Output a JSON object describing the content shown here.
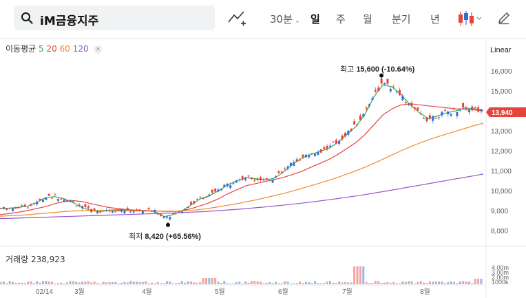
{
  "toolbar": {
    "search_value": "iM금융지주",
    "period_minute": "30분",
    "periods": [
      "일",
      "주",
      "월",
      "분기",
      "년"
    ],
    "active_period": "일"
  },
  "indicators": {
    "ma_label": "이동평균",
    "ma_periods": [
      "5",
      "20",
      "60",
      "120"
    ],
    "ma_colors": [
      "#39a845",
      "#e5433c",
      "#f08a2e",
      "#9656c8"
    ],
    "close_glyph": "×"
  },
  "scale_type": "Linear",
  "price_axis": {
    "ticks": [
      "16,000",
      "15,000",
      "14,000",
      "13,000",
      "12,000",
      "11,000",
      "10,000",
      "9,000",
      "8,000"
    ],
    "current_price": "13,940",
    "current_price_color": "#e5433c"
  },
  "annotations": {
    "high_prefix": "최고",
    "high_value": "15,600 (-10.64%)",
    "low_prefix": "최저",
    "low_value": "8,420 (+65.56%)"
  },
  "volume": {
    "label": "거래량",
    "value": "238,923",
    "axis_ticks": [
      "4.00m",
      "3.00m",
      "2.00m",
      "1000k"
    ]
  },
  "time_axis": [
    "02/14",
    "3월",
    "4월",
    "5월",
    "6월",
    "7월",
    "8월"
  ],
  "colors": {
    "up": "#e5433c",
    "down": "#2f6fd8"
  },
  "chart_data": {
    "type": "line",
    "ylim": [
      7700,
      16400
    ],
    "series": [
      {
        "name": "5",
        "values": [
          9100,
          9120,
          9160,
          9220,
          9400,
          9650,
          9700,
          9600,
          9400,
          9150,
          9000,
          8950,
          9020,
          9050,
          9000,
          8980,
          9000,
          8950,
          8700,
          8800,
          9000,
          9300,
          9600,
          9750,
          10000,
          10300,
          10500,
          10650,
          10600,
          10550,
          10600,
          10900,
          11300,
          11600,
          11800,
          11950,
          12100,
          12400,
          12800,
          13200,
          13800,
          14700,
          15300,
          15200,
          14800,
          14300,
          13900,
          13600,
          13750,
          13900,
          14000,
          14150,
          14100,
          14000
        ]
      },
      {
        "name": "20",
        "values": [
          8800,
          8850,
          8920,
          9000,
          9100,
          9200,
          9350,
          9450,
          9500,
          9450,
          9350,
          9250,
          9150,
          9100,
          9050,
          9020,
          9000,
          8990,
          8960,
          8960,
          8990,
          9100,
          9250,
          9400,
          9600,
          9850,
          10050,
          10250,
          10350,
          10450,
          10550,
          10650,
          10800,
          10950,
          11150,
          11350,
          11550,
          11800,
          12100,
          12400,
          12800,
          13300,
          13800,
          14100,
          14300,
          14350,
          14300,
          14250,
          14200,
          14150,
          14100,
          14080,
          14050,
          14000
        ]
      },
      {
        "name": "60",
        "values": [
          8720,
          8740,
          8760,
          8790,
          8830,
          8870,
          8910,
          8950,
          8980,
          9000,
          9010,
          9010,
          9000,
          8995,
          8990,
          8985,
          8980,
          8980,
          8975,
          8975,
          8985,
          9010,
          9060,
          9120,
          9190,
          9270,
          9350,
          9440,
          9530,
          9630,
          9740,
          9850,
          9970,
          10100,
          10230,
          10370,
          10510,
          10660,
          10820,
          10990,
          11170,
          11370,
          11580,
          11790,
          12000,
          12200,
          12380,
          12550,
          12700,
          12840,
          12980,
          13120,
          13260,
          13380
        ]
      },
      {
        "name": "120",
        "values": [
          8600,
          8610,
          8625,
          8640,
          8655,
          8670,
          8685,
          8700,
          8715,
          8730,
          8745,
          8760,
          8775,
          8790,
          8805,
          8820,
          8835,
          8850,
          8865,
          8880,
          8900,
          8920,
          8945,
          8970,
          9000,
          9030,
          9065,
          9100,
          9140,
          9180,
          9225,
          9270,
          9320,
          9370,
          9425,
          9480,
          9540,
          9600,
          9665,
          9730,
          9800,
          9875,
          9950,
          10030,
          10110,
          10190,
          10270,
          10350,
          10430,
          10510,
          10590,
          10670,
          10750,
          10830
        ]
      }
    ],
    "high": 15600,
    "low": 8420,
    "last": 13940
  }
}
